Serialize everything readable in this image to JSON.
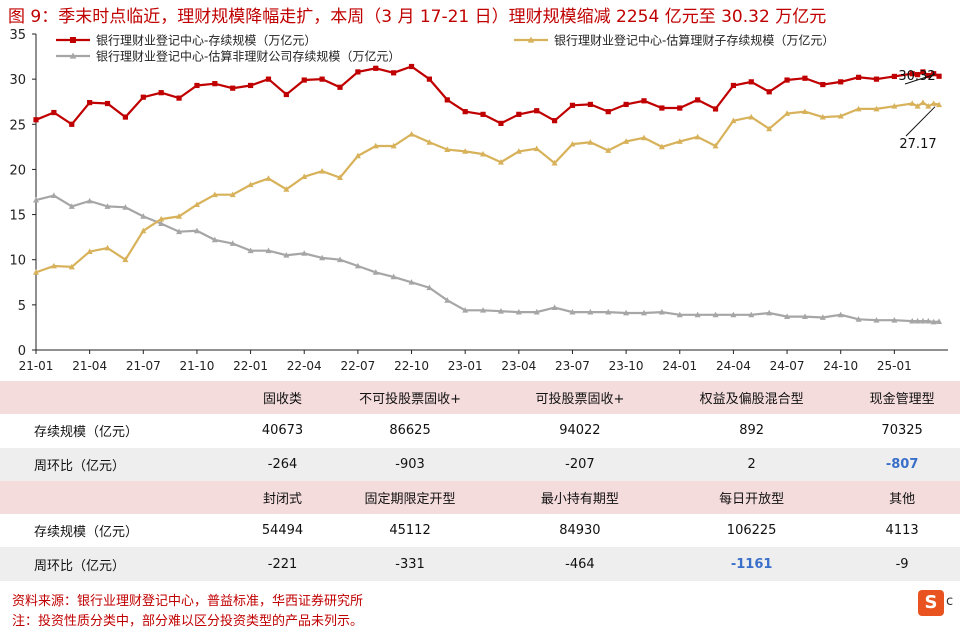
{
  "title": "图 9：季末时点临近，理财规模降幅走扩，本周（3 月 17-21 日）理财规模缩减 2254 亿元至 30.32 万亿元",
  "chart_data": {
    "type": "line",
    "xlim": [
      0,
      51
    ],
    "ylim": [
      0,
      35
    ],
    "yticks": [
      0,
      5,
      10,
      15,
      20,
      25,
      30,
      35
    ],
    "xtick_labels": [
      "21-01",
      "21-04",
      "21-07",
      "21-10",
      "22-01",
      "22-04",
      "22-07",
      "22-10",
      "23-01",
      "23-04",
      "23-07",
      "23-10",
      "24-01",
      "24-04",
      "24-07",
      "24-10",
      "25-01"
    ],
    "xtick_positions": [
      0,
      3,
      6,
      9,
      12,
      15,
      18,
      21,
      24,
      27,
      30,
      33,
      36,
      39,
      42,
      45,
      48
    ],
    "grid": false,
    "legend": "top",
    "series": [
      {
        "name": "银行理财业登记中心-存续规模（万亿元）",
        "color": "#c00000",
        "marker": "square",
        "x": [
          0,
          1,
          2,
          3,
          4,
          5,
          6,
          7,
          8,
          9,
          10,
          11,
          12,
          13,
          14,
          15,
          16,
          17,
          18,
          19,
          20,
          21,
          22,
          23,
          24,
          25,
          26,
          27,
          28,
          29,
          30,
          31,
          32,
          33,
          34,
          35,
          36,
          37,
          38,
          39,
          40,
          41,
          42,
          43,
          44,
          45,
          46,
          47,
          48,
          49,
          49.3,
          49.6,
          49.9,
          50.2,
          50.5
        ],
        "values": [
          25.5,
          26.3,
          25.0,
          27.4,
          27.3,
          25.8,
          28.0,
          28.5,
          27.9,
          29.3,
          29.5,
          29.0,
          29.3,
          30.0,
          28.3,
          29.9,
          30.0,
          29.1,
          30.8,
          31.2,
          30.7,
          31.4,
          30.0,
          27.7,
          26.4,
          26.1,
          25.1,
          26.1,
          26.5,
          25.4,
          27.1,
          27.2,
          26.4,
          27.2,
          27.6,
          26.8,
          26.8,
          27.7,
          26.7,
          29.3,
          29.7,
          28.6,
          29.9,
          30.1,
          29.4,
          29.7,
          30.2,
          30.0,
          30.3,
          30.6,
          30.5,
          30.8,
          30.4,
          30.6,
          30.32
        ]
      },
      {
        "name": "银行理财业登记中心-估算理财子存续规模（万亿元）",
        "color": "#d8b25a",
        "marker": "triangle",
        "x": [
          0,
          1,
          2,
          3,
          4,
          5,
          6,
          7,
          8,
          9,
          10,
          11,
          12,
          13,
          14,
          15,
          16,
          17,
          18,
          19,
          20,
          21,
          22,
          23,
          24,
          25,
          26,
          27,
          28,
          29,
          30,
          31,
          32,
          33,
          34,
          35,
          36,
          37,
          38,
          39,
          40,
          41,
          42,
          43,
          44,
          45,
          46,
          47,
          48,
          49,
          49.3,
          49.6,
          49.9,
          50.2,
          50.5
        ],
        "values": [
          8.6,
          9.3,
          9.2,
          10.9,
          11.3,
          10.0,
          13.2,
          14.5,
          14.8,
          16.1,
          17.2,
          17.2,
          18.3,
          19.0,
          17.8,
          19.2,
          19.8,
          19.1,
          21.5,
          22.6,
          22.6,
          23.9,
          23.0,
          22.2,
          22.0,
          21.7,
          20.8,
          22.0,
          22.3,
          20.7,
          22.8,
          23.0,
          22.1,
          23.1,
          23.5,
          22.5,
          23.1,
          23.6,
          22.6,
          25.4,
          25.8,
          24.5,
          26.2,
          26.4,
          25.8,
          25.9,
          26.7,
          26.7,
          27.0,
          27.3,
          27.0,
          27.4,
          27.0,
          27.3,
          27.17
        ]
      },
      {
        "name": "银行理财业登记中心-估算非理财公司存续规模（万亿元）",
        "color": "#a6a6a6",
        "marker": "triangle",
        "x": [
          0,
          1,
          2,
          3,
          4,
          5,
          6,
          7,
          8,
          9,
          10,
          11,
          12,
          13,
          14,
          15,
          16,
          17,
          18,
          19,
          20,
          21,
          22,
          23,
          24,
          25,
          26,
          27,
          28,
          29,
          30,
          31,
          32,
          33,
          34,
          35,
          36,
          37,
          38,
          39,
          40,
          41,
          42,
          43,
          44,
          45,
          46,
          47,
          48,
          49,
          49.3,
          49.6,
          49.9,
          50.2,
          50.5
        ],
        "values": [
          16.6,
          17.1,
          15.9,
          16.5,
          15.9,
          15.8,
          14.8,
          14.0,
          13.1,
          13.2,
          12.2,
          11.8,
          11.0,
          11.0,
          10.5,
          10.7,
          10.2,
          10.0,
          9.3,
          8.6,
          8.1,
          7.5,
          6.9,
          5.5,
          4.4,
          4.4,
          4.3,
          4.2,
          4.2,
          4.7,
          4.2,
          4.2,
          4.2,
          4.1,
          4.1,
          4.2,
          3.9,
          3.9,
          3.9,
          3.9,
          3.9,
          4.1,
          3.7,
          3.7,
          3.6,
          3.9,
          3.4,
          3.3,
          3.3,
          3.2,
          3.2,
          3.2,
          3.2,
          3.1,
          3.15
        ]
      }
    ],
    "annotations": [
      {
        "text": "30.32",
        "x": 50.5,
        "y": 30.32
      },
      {
        "text": "27.17",
        "x": 50.5,
        "y": 27.17
      }
    ]
  },
  "table": {
    "row_label_scale": "存续规模（亿元）",
    "row_label_change": "周环比（亿元）",
    "group1": {
      "headers": [
        "固收类",
        "不可投股票固收+",
        "可投股票固收+",
        "权益及偏股混合型",
        "现金管理型"
      ],
      "scale": [
        "40673",
        "86625",
        "94022",
        "892",
        "70325"
      ],
      "change": [
        "-264",
        "-903",
        "-207",
        "2",
        "-807"
      ]
    },
    "group2": {
      "headers": [
        "封闭式",
        "固定期限定开型",
        "最小持有期型",
        "每日开放型",
        "其他"
      ],
      "scale": [
        "54494",
        "45112",
        "84930",
        "106225",
        "4113"
      ],
      "change": [
        "-221",
        "-331",
        "-464",
        "-1161",
        "-9"
      ]
    }
  },
  "footer": {
    "source": "资料来源：银行业理财登记中心，普益标准，华西证券研究所",
    "note": "注：投资性质分类中，部分难以区分投资类型的产品未列示。"
  },
  "logo": {
    "letter": "S",
    "tail": "c"
  }
}
